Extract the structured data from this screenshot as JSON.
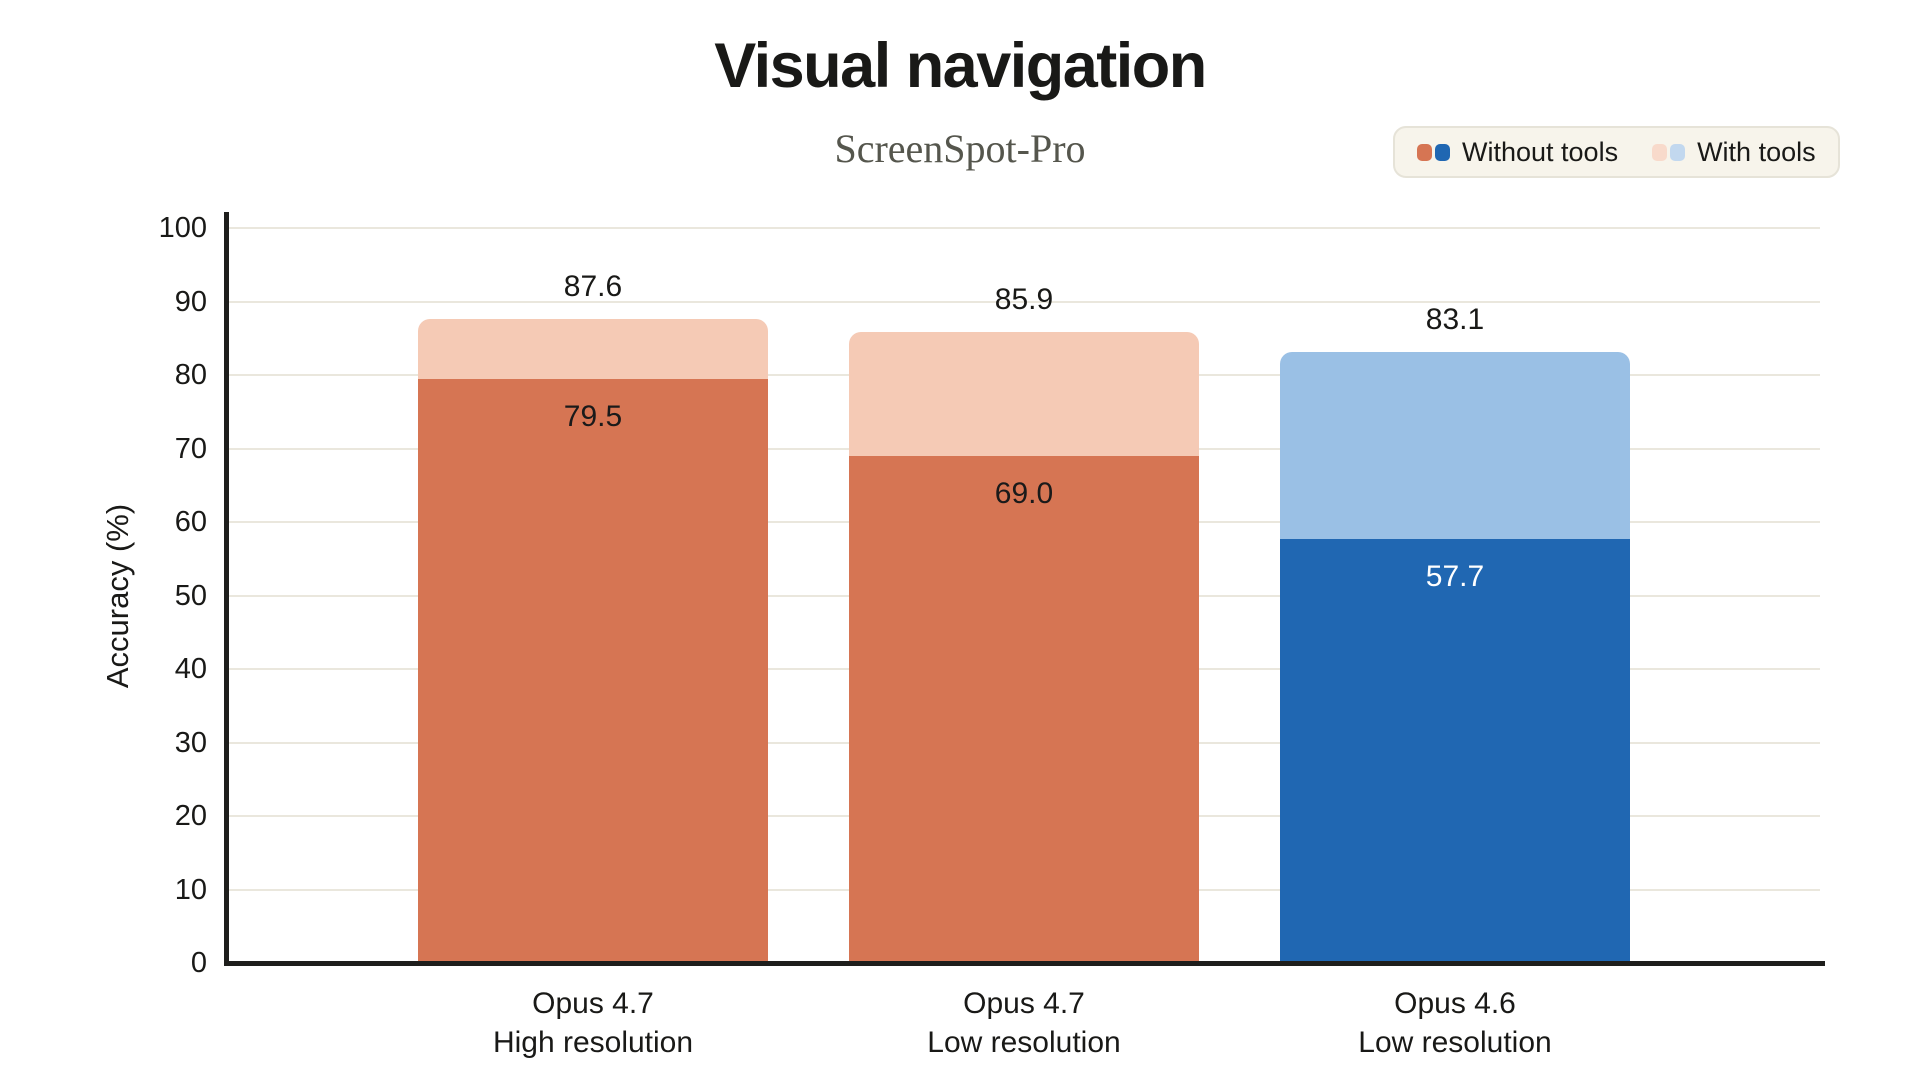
{
  "chart_data": {
    "type": "bar",
    "variant": "overlay-stacked-columns",
    "title": "Visual navigation",
    "subtitle": "ScreenSpot-Pro",
    "ylabel": "Accuracy (%)",
    "ylim": [
      0,
      100
    ],
    "yticks": [
      0,
      10,
      20,
      30,
      40,
      50,
      60,
      70,
      80,
      90,
      100
    ],
    "grid": "horizontal",
    "legend": {
      "position": "top-right",
      "entries": [
        {
          "label": "Without tools",
          "swatches": [
            "#D67553",
            "#2067B2"
          ]
        },
        {
          "label": "With tools",
          "swatches": [
            "#F8DACB",
            "#C2D8EF"
          ]
        }
      ]
    },
    "series": [
      {
        "name": "Without tools",
        "values": [
          79.5,
          69.0,
          57.7
        ]
      },
      {
        "name": "With tools",
        "values": [
          87.6,
          85.9,
          83.1
        ]
      }
    ],
    "bars": [
      {
        "category_line1": "Opus 4.7",
        "category_line2": "High resolution",
        "without_tools": 79.5,
        "with_tools": 87.6,
        "without_label": "79.5",
        "with_label": "87.6",
        "without_color": "#D67553",
        "with_color": "#F5CAB5",
        "inside_label_color": "#1a1a1a"
      },
      {
        "category_line1": "Opus 4.7",
        "category_line2": "Low resolution",
        "without_tools": 69.0,
        "with_tools": 85.9,
        "without_label": "69.0",
        "with_label": "85.9",
        "without_color": "#D67553",
        "with_color": "#F5CAB5",
        "inside_label_color": "#1a1a1a"
      },
      {
        "category_line1": "Opus 4.6",
        "category_line2": "Low resolution",
        "without_tools": 57.7,
        "with_tools": 83.1,
        "without_label": "57.7",
        "with_label": "83.1",
        "without_color": "#2067B2",
        "with_color": "#9AC0E5",
        "inside_label_color": "#ffffff"
      }
    ],
    "colors": {
      "axis": "#1e1e1c",
      "gridline": "#eae7dd",
      "text": "#191917",
      "subtitle_text": "#55564d",
      "legend_background": "#f7f4eb",
      "legend_border": "#e6e3d8",
      "page_background": "#ffffff"
    }
  }
}
